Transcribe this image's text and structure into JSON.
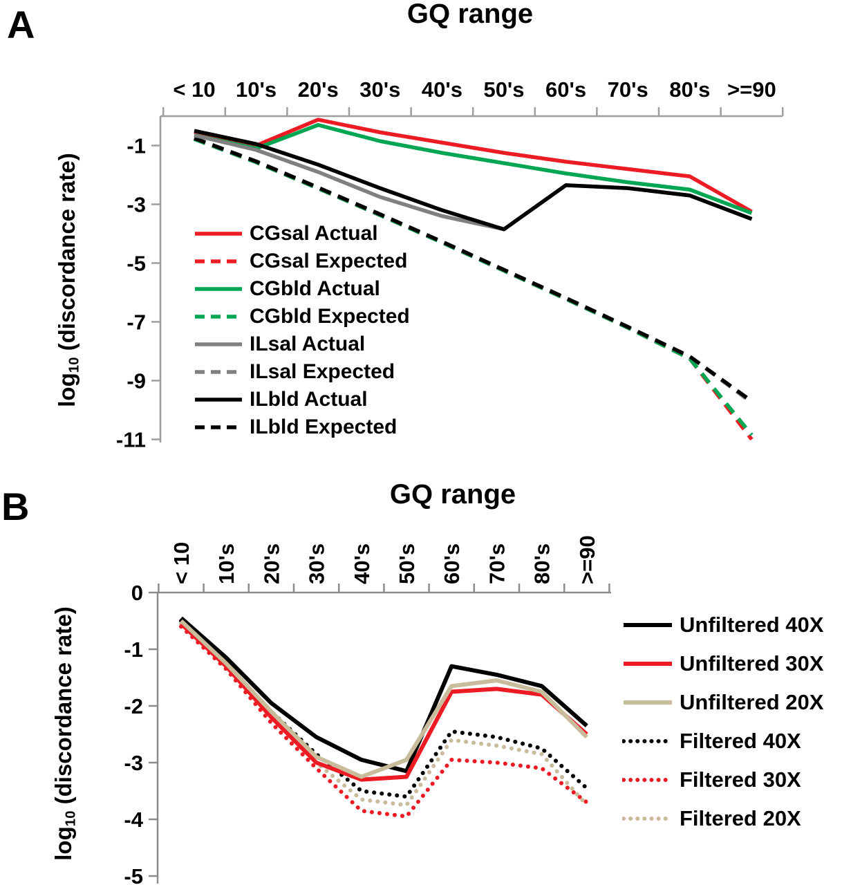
{
  "panel_a": {
    "label": "A",
    "y_axis_label": {
      "prefix": "log",
      "sub": "10",
      "suffix": " (discordance rate)"
    }
  },
  "panel_b": {
    "label": "B",
    "y_axis_label": {
      "prefix": "log",
      "sub": "10",
      "suffix": " (discordance rate)"
    }
  },
  "chart_data": [
    {
      "type": "line",
      "title": "GQ range",
      "xlabel": "GQ range",
      "ylabel": "log10 (discordance rate)",
      "ylim": [
        -11,
        0
      ],
      "x_axis_position": "top",
      "grid": false,
      "legend_position": "inside-left",
      "categories": [
        "< 10",
        "10's",
        "20's",
        "30's",
        "40's",
        "50's",
        "60's",
        "70's",
        "80's",
        ">=90"
      ],
      "y_ticks": [
        -1,
        -3,
        -5,
        -7,
        -9,
        -11
      ],
      "series": [
        {
          "name": "CGsal Actual",
          "color": "#ed1c24",
          "line_style": "solid",
          "values": [
            -0.55,
            -1.0,
            -0.12,
            -0.55,
            -0.9,
            -1.25,
            -1.55,
            -1.8,
            -2.05,
            -3.25
          ]
        },
        {
          "name": "CGsal Expected",
          "color": "#ed1c24",
          "line_style": "dashed",
          "values": [
            -0.78,
            -1.57,
            -2.46,
            -3.37,
            -4.3,
            -5.26,
            -6.22,
            -7.2,
            -8.25,
            -11.0
          ]
        },
        {
          "name": "CGbld Actual",
          "color": "#00a651",
          "line_style": "solid",
          "values": [
            -0.65,
            -1.1,
            -0.3,
            -0.85,
            -1.25,
            -1.6,
            -1.95,
            -2.25,
            -2.5,
            -3.3
          ]
        },
        {
          "name": "CGbld Expected",
          "color": "#00a651",
          "line_style": "dashed",
          "values": [
            -0.78,
            -1.57,
            -2.46,
            -3.37,
            -4.3,
            -5.26,
            -6.22,
            -7.2,
            -8.25,
            -10.85
          ]
        },
        {
          "name": "ILsal Actual",
          "color": "#808080",
          "line_style": "solid",
          "values": [
            -0.65,
            -1.15,
            -1.9,
            -2.75,
            -3.4,
            -3.85,
            -2.35,
            -2.45,
            -2.7,
            -3.5
          ]
        },
        {
          "name": "ILsal Expected",
          "color": "#808080",
          "line_style": "dashed",
          "values": [
            -0.75,
            -1.54,
            -2.43,
            -3.34,
            -4.27,
            -5.23,
            -6.19,
            -7.17,
            -8.18,
            -9.75
          ]
        },
        {
          "name": "ILbld Actual",
          "color": "#000000",
          "line_style": "solid",
          "values": [
            -0.5,
            -0.95,
            -1.65,
            -2.45,
            -3.2,
            -3.85,
            -2.35,
            -2.45,
            -2.7,
            -3.5
          ]
        },
        {
          "name": "ILbld Expected",
          "color": "#000000",
          "line_style": "dashed",
          "values": [
            -0.75,
            -1.54,
            -2.43,
            -3.34,
            -4.27,
            -5.23,
            -6.19,
            -7.17,
            -8.18,
            -9.7
          ]
        }
      ]
    },
    {
      "type": "line",
      "title": "GQ range",
      "xlabel": "GQ range",
      "ylabel": "log10 (discordance rate)",
      "ylim": [
        -5,
        0
      ],
      "x_axis_position": "top",
      "grid": false,
      "legend_position": "right",
      "categories": [
        "< 10",
        "10's",
        "20's",
        "30's",
        "40's",
        "50's",
        "60's",
        "70's",
        "80's",
        ">=90"
      ],
      "y_ticks": [
        0,
        -1,
        -2,
        -3,
        -4,
        -5
      ],
      "series": [
        {
          "name": "Unfiltered 40X",
          "color": "#000000",
          "line_style": "solid",
          "values": [
            -0.45,
            -1.15,
            -1.95,
            -2.55,
            -2.95,
            -3.15,
            -1.3,
            -1.45,
            -1.65,
            -2.35
          ]
        },
        {
          "name": "Unfiltered 30X",
          "color": "#ed1c24",
          "line_style": "solid",
          "values": [
            -0.55,
            -1.3,
            -2.2,
            -3.0,
            -3.3,
            -3.25,
            -1.75,
            -1.7,
            -1.8,
            -2.5
          ]
        },
        {
          "name": "Unfiltered 20X",
          "color": "#c9bc9c",
          "line_style": "solid",
          "values": [
            -0.5,
            -1.25,
            -2.1,
            -2.9,
            -3.25,
            -2.95,
            -1.65,
            -1.55,
            -1.75,
            -2.55
          ]
        },
        {
          "name": "Filtered 40X",
          "color": "#000000",
          "line_style": "dotted",
          "values": [
            -0.5,
            -1.25,
            -2.1,
            -2.85,
            -3.5,
            -3.6,
            -2.45,
            -2.55,
            -2.75,
            -3.45
          ]
        },
        {
          "name": "Filtered 30X",
          "color": "#ed1c24",
          "line_style": "dotted",
          "values": [
            -0.6,
            -1.35,
            -2.3,
            -3.1,
            -3.85,
            -3.95,
            -2.95,
            -3.0,
            -3.1,
            -3.7
          ]
        },
        {
          "name": "Filtered 20X",
          "color": "#c9bc9c",
          "line_style": "dotted",
          "values": [
            -0.55,
            -1.3,
            -2.2,
            -3.0,
            -3.65,
            -3.75,
            -2.6,
            -2.7,
            -2.85,
            -3.75
          ]
        }
      ]
    }
  ]
}
